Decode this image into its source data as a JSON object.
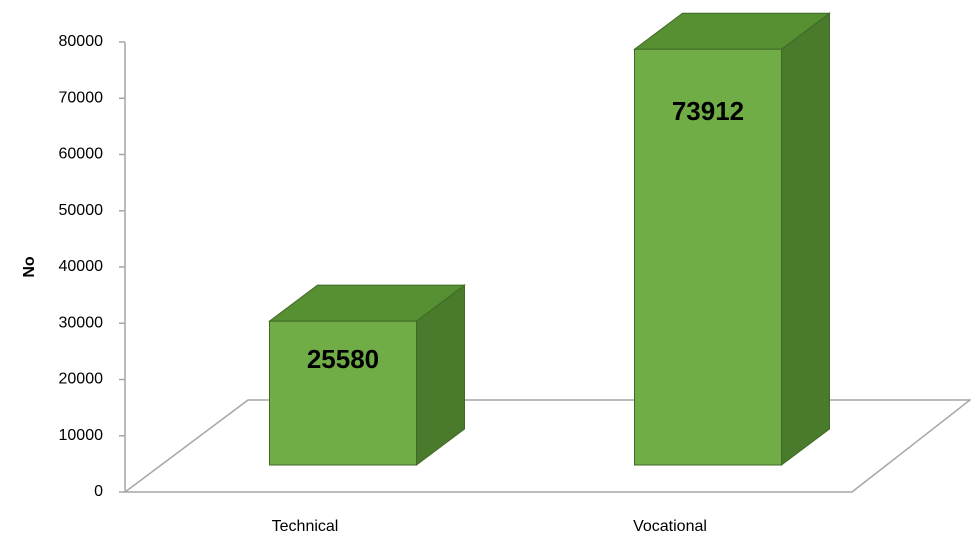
{
  "chart_data": {
    "type": "bar3d",
    "ylabel": "No",
    "categories": [
      "Technical",
      "Vocational"
    ],
    "values": [
      25580,
      73912
    ],
    "color": "#70ad47",
    "ylim": [
      0,
      80000
    ],
    "yticks": [
      0,
      10000,
      20000,
      30000,
      40000,
      50000,
      60000,
      70000,
      80000
    ]
  }
}
